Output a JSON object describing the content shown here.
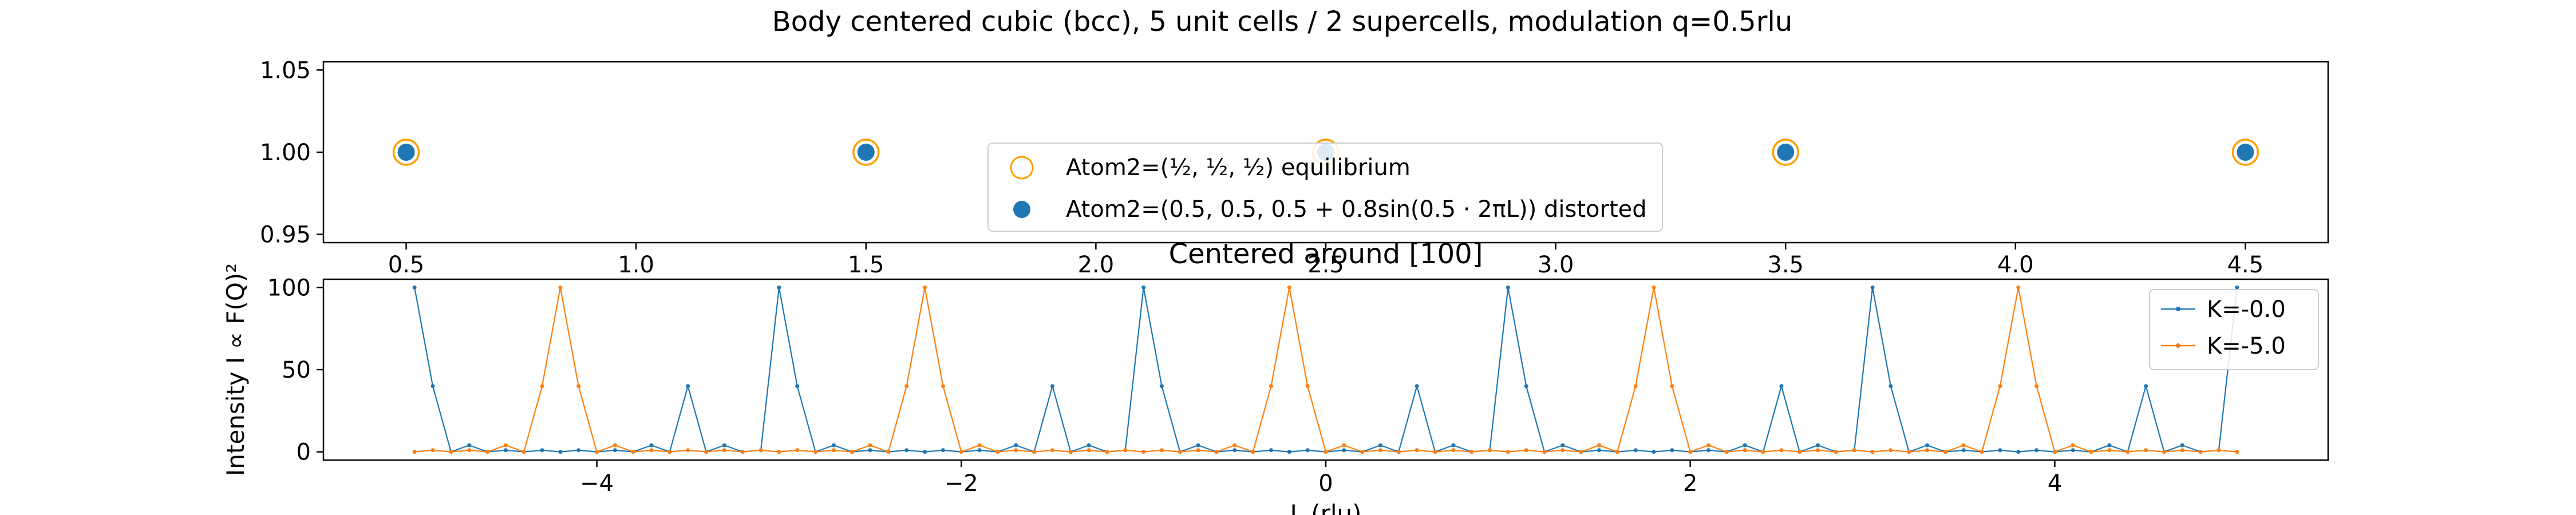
{
  "figure": {
    "suptitle": "Body centered cubic (bcc), 5 unit cells / 2 supercells, modulation q=0.5rlu"
  },
  "chart_data": [
    {
      "type": "scatter",
      "xlim": [
        0.32,
        4.68
      ],
      "ylim": [
        0.945,
        1.055
      ],
      "xticks": [
        "0.5",
        "1.0",
        "1.5",
        "2.0",
        "2.5",
        "3.0",
        "3.5",
        "4.0",
        "4.5"
      ],
      "xtick_values": [
        0.5,
        1.0,
        1.5,
        2.0,
        2.5,
        3.0,
        3.5,
        4.0,
        4.5
      ],
      "yticks": [
        "0.95",
        "1.00",
        "1.05"
      ],
      "ytick_values": [
        0.95,
        1.0,
        1.05
      ],
      "grid": false,
      "legend_position": "lower-center",
      "series": [
        {
          "name": "Atom2=(½, ½, ½) equilibrium",
          "marker": "open-circle",
          "color": "#ff9f00",
          "x": [
            0.5,
            1.5,
            2.5,
            3.5,
            4.5
          ],
          "y": [
            1.0,
            1.0,
            1.0,
            1.0,
            1.0
          ]
        },
        {
          "name": "Atom2=(0.5, 0.5, 0.5 + 0.8sin(0.5 · 2πL)) distorted",
          "marker": "filled-circle",
          "color": "#1f77b4",
          "x": [
            0.5,
            1.5,
            2.5,
            3.5,
            4.5
          ],
          "y": [
            1.0,
            1.0,
            1.0,
            1.0,
            1.0
          ]
        }
      ]
    },
    {
      "type": "line",
      "title": "Centered around [100]",
      "xlabel": "L (rlu)",
      "ylabel": "Intensity I ∝ F(Q)²",
      "xlim": [
        -5.5,
        5.5
      ],
      "ylim": [
        -5,
        105
      ],
      "xticks": [
        "−4",
        "−2",
        "0",
        "2",
        "4"
      ],
      "xtick_values": [
        -4,
        -2,
        0,
        2,
        4
      ],
      "yticks": [
        "0",
        "50",
        "100"
      ],
      "ytick_values": [
        0,
        50,
        100
      ],
      "grid": false,
      "legend_position": "upper-right",
      "x": [
        -5.0,
        -4.9,
        -4.8,
        -4.7,
        -4.6,
        -4.5,
        -4.4,
        -4.3,
        -4.2,
        -4.1,
        -4.0,
        -3.9,
        -3.8,
        -3.7,
        -3.6,
        -3.5,
        -3.4,
        -3.3,
        -3.2,
        -3.1,
        -3.0,
        -2.9,
        -2.8,
        -2.7,
        -2.6,
        -2.5,
        -2.4,
        -2.3,
        -2.2,
        -2.1,
        -2.0,
        -1.9,
        -1.8,
        -1.7,
        -1.6,
        -1.5,
        -1.4,
        -1.3,
        -1.2,
        -1.1,
        -1.0,
        -0.9,
        -0.8,
        -0.7,
        -0.6,
        -0.5,
        -0.4,
        -0.3,
        -0.2,
        -0.1,
        0.0,
        0.1,
        0.2,
        0.3,
        0.4,
        0.5,
        0.6,
        0.7,
        0.8,
        0.9,
        1.0,
        1.1,
        1.2,
        1.3,
        1.4,
        1.5,
        1.6,
        1.7,
        1.8,
        1.9,
        2.0,
        2.1,
        2.2,
        2.3,
        2.4,
        2.5,
        2.6,
        2.7,
        2.8,
        2.9,
        3.0,
        3.1,
        3.2,
        3.3,
        3.4,
        3.5,
        3.6,
        3.7,
        3.8,
        3.9,
        4.0,
        4.1,
        4.2,
        4.3,
        4.4,
        4.5,
        4.6,
        4.7,
        4.8,
        4.9,
        5.0
      ],
      "series": [
        {
          "name": "K=-0.0",
          "color": "#1f77b4",
          "values": [
            100,
            40,
            0,
            4,
            0,
            1,
            0,
            1,
            0,
            1,
            0,
            1,
            0,
            4,
            0,
            40,
            0,
            4,
            0,
            1,
            100,
            40,
            0,
            4,
            0,
            1,
            0,
            1,
            0,
            1,
            0,
            1,
            0,
            4,
            0,
            40,
            0,
            4,
            0,
            1,
            100,
            40,
            0,
            4,
            0,
            1,
            0,
            1,
            0,
            1,
            0,
            1,
            0,
            4,
            0,
            40,
            0,
            4,
            0,
            1,
            100,
            40,
            0,
            4,
            0,
            1,
            0,
            1,
            0,
            1,
            0,
            1,
            0,
            4,
            0,
            40,
            0,
            4,
            0,
            1,
            100,
            40,
            0,
            4,
            0,
            1,
            0,
            1,
            0,
            1,
            0,
            1,
            0,
            4,
            0,
            40,
            0,
            4,
            0,
            1,
            100
          ]
        },
        {
          "name": "K=-5.0",
          "color": "#ff7f0e",
          "values": [
            0,
            1,
            0,
            1,
            0,
            4,
            0,
            40,
            100,
            40,
            0,
            4,
            0,
            1,
            0,
            1,
            0,
            1,
            0,
            1,
            0,
            1,
            0,
            1,
            0,
            4,
            0,
            40,
            100,
            40,
            0,
            4,
            0,
            1,
            0,
            1,
            0,
            1,
            0,
            1,
            0,
            1,
            0,
            1,
            0,
            4,
            0,
            40,
            100,
            40,
            0,
            4,
            0,
            1,
            0,
            1,
            0,
            1,
            0,
            1,
            0,
            1,
            0,
            1,
            0,
            4,
            0,
            40,
            100,
            40,
            0,
            4,
            0,
            1,
            0,
            1,
            0,
            1,
            0,
            1,
            0,
            1,
            0,
            1,
            0,
            4,
            0,
            40,
            100,
            40,
            0,
            4,
            0,
            1,
            0,
            1,
            0,
            1,
            0,
            1,
            0
          ]
        }
      ]
    }
  ]
}
